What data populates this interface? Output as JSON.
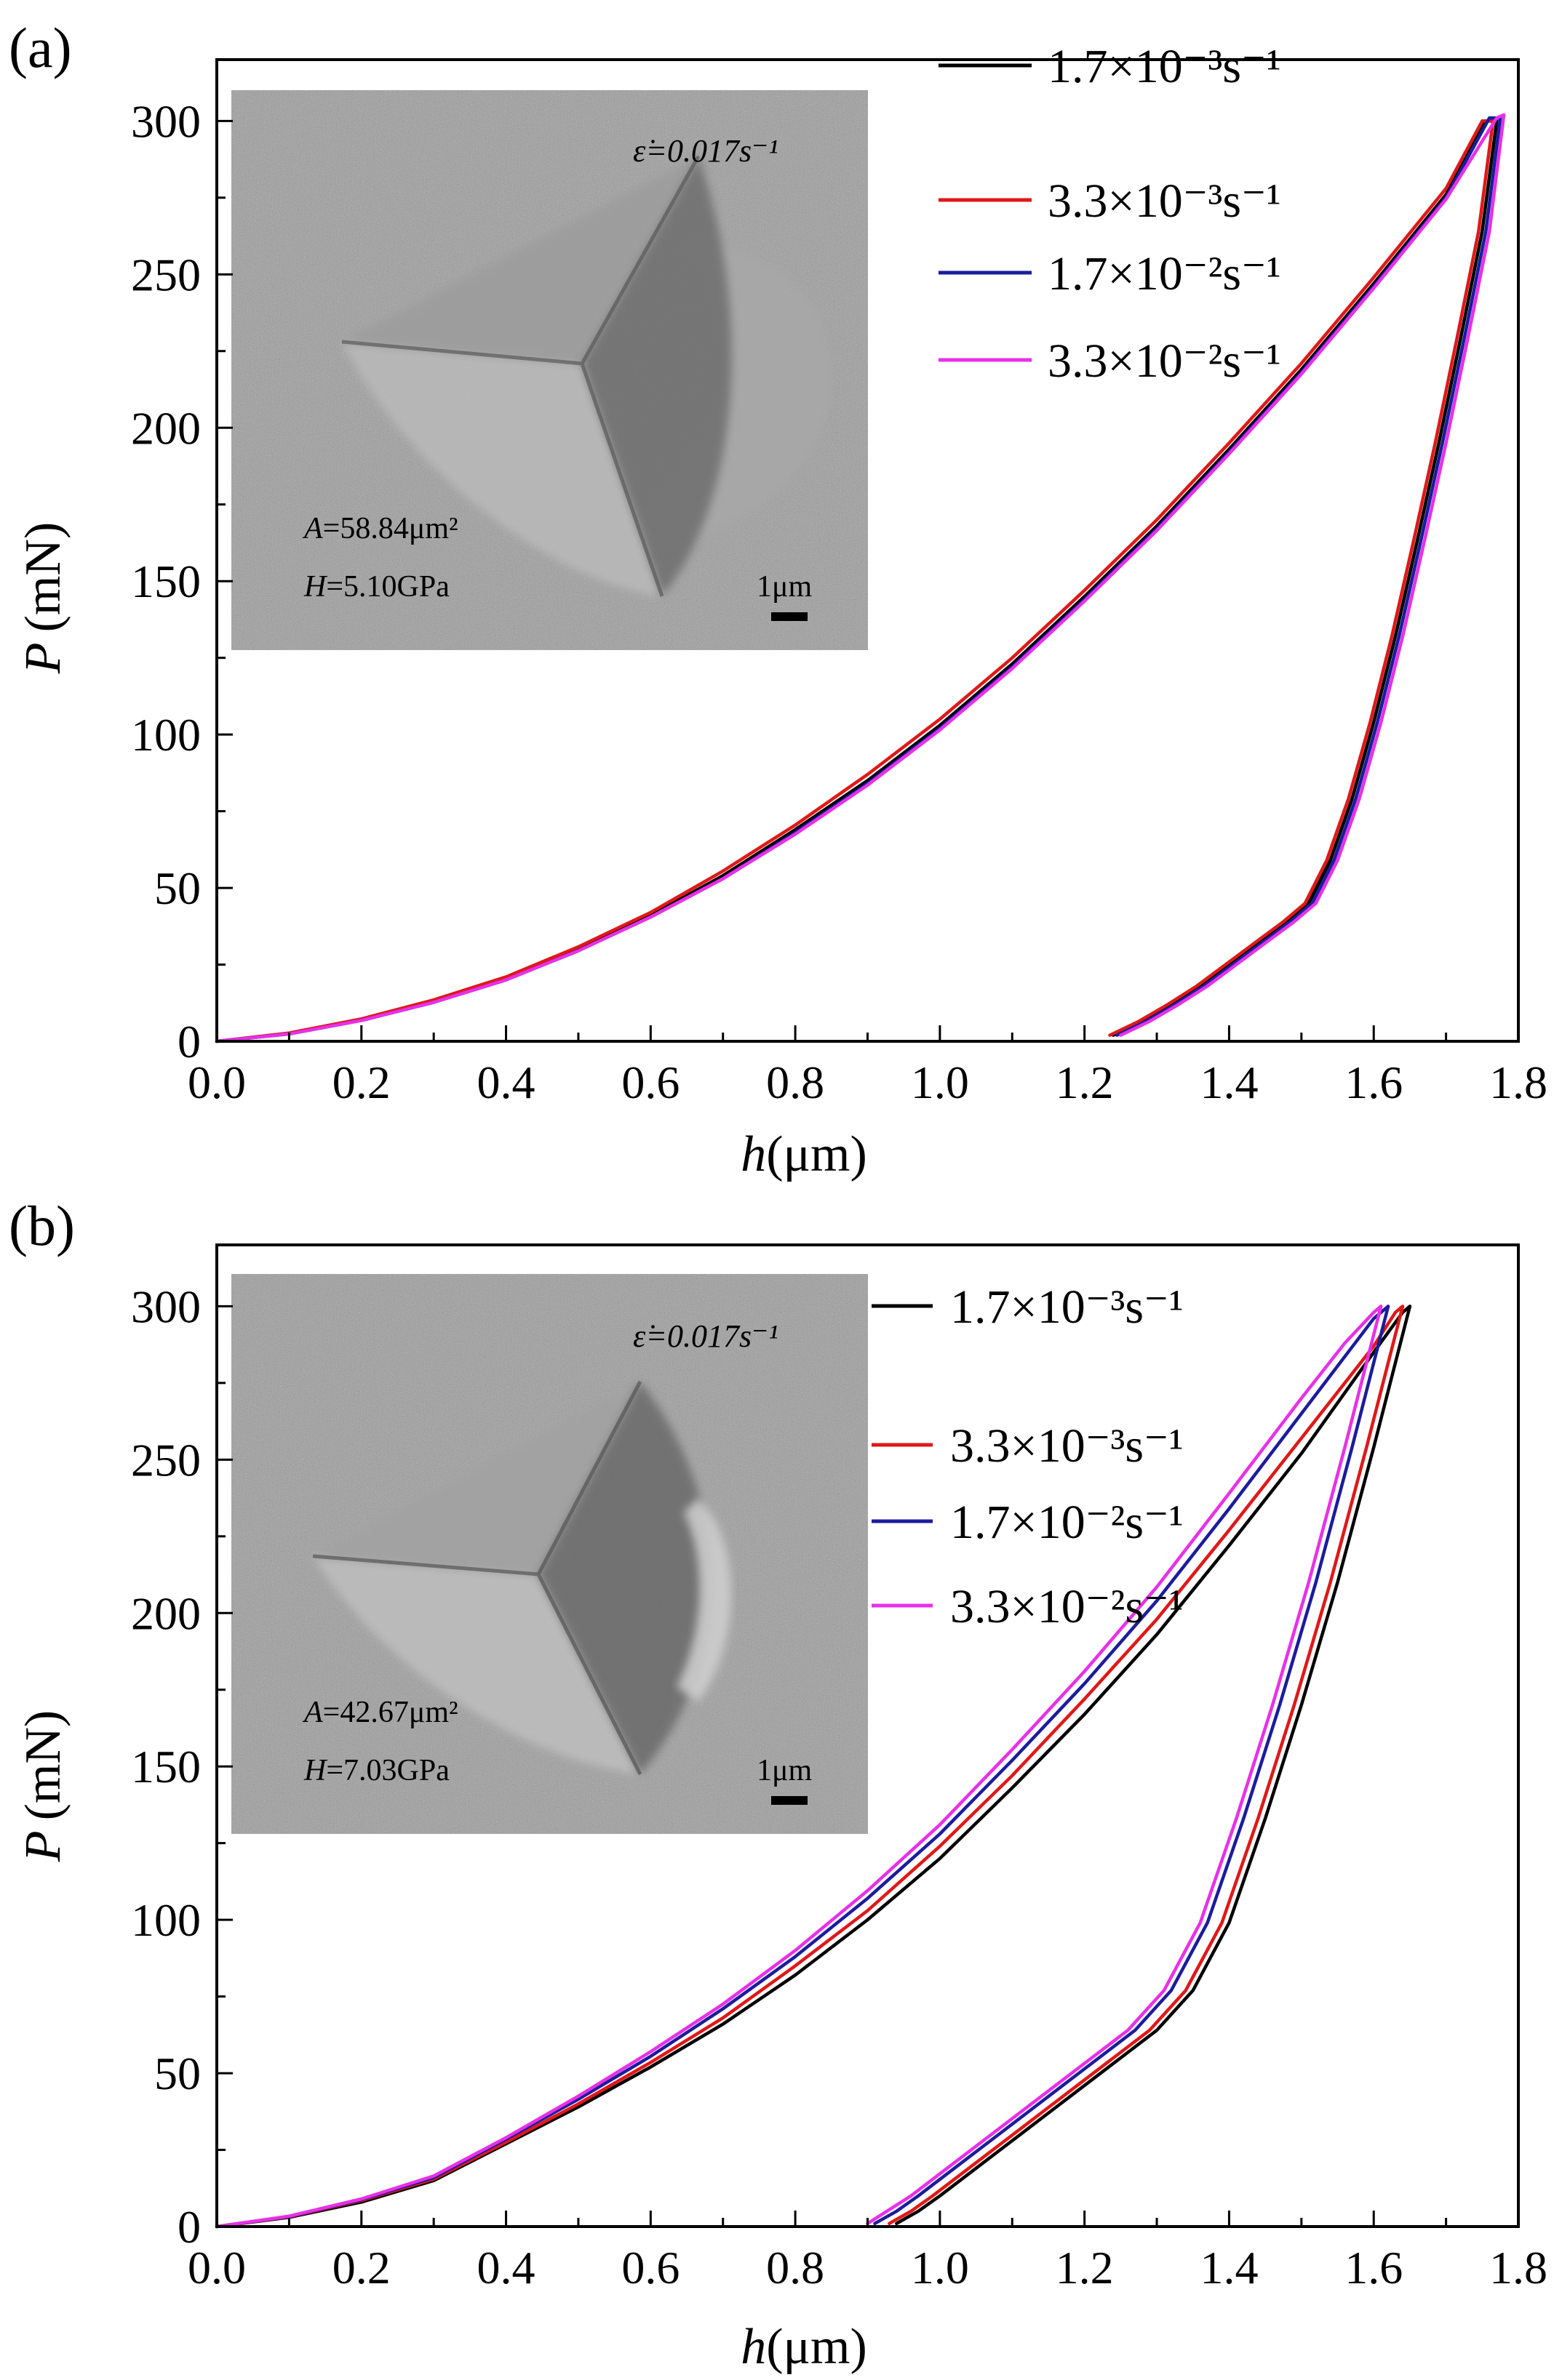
{
  "chart_data": [
    {
      "panel_label": "(a)",
      "type": "line",
      "xlabel_italic": "h",
      "xlabel_unit": "(μm)",
      "ylabel_italic": "P",
      "ylabel_unit": "(mN)",
      "xlim": [
        0.0,
        1.8
      ],
      "ylim": [
        0,
        320
      ],
      "xticks": [
        "0.0",
        "0.2",
        "0.4",
        "0.6",
        "0.8",
        "1.0",
        "1.2",
        "1.4",
        "1.6",
        "1.8"
      ],
      "yticks": [
        "0",
        "50",
        "100",
        "150",
        "200",
        "250",
        "300"
      ],
      "legend_position": "top-right",
      "inset": {
        "strain_rate_label": "ε̇=0.017s⁻¹",
        "area_label_italic": "A",
        "area_label_value": "=58.84μm²",
        "hardness_label_italic": "H",
        "hardness_label_value": "=5.10GPa",
        "scale_bar_label": "1μm"
      },
      "series": [
        {
          "name": "1.7×10⁻³s⁻¹",
          "color": "#000000",
          "x": [
            0,
            0.1,
            0.2,
            0.3,
            0.4,
            0.5,
            0.6,
            0.7,
            0.8,
            0.9,
            1.0,
            1.1,
            1.2,
            1.3,
            1.4,
            1.5,
            1.6,
            1.7,
            1.755,
            1.77,
            1.75,
            1.72,
            1.69,
            1.66,
            1.63,
            1.6,
            1.57,
            1.54,
            1.51,
            1.48,
            1.44,
            1.4,
            1.36,
            1.32,
            1.28,
            1.24
          ],
          "y": [
            0,
            2.5,
            7,
            13,
            20.5,
            30,
            41,
            54,
            69,
            85,
            103,
            123,
            145,
            168,
            193,
            219,
            247,
            276,
            300,
            300,
            264,
            229,
            195,
            163,
            132,
            104,
            79,
            59,
            45,
            39,
            32,
            25,
            18,
            12,
            6.5,
            2
          ]
        },
        {
          "name": "3.3×10⁻³s⁻¹",
          "color": "#e01818",
          "x": [
            0,
            0.1,
            0.2,
            0.3,
            0.4,
            0.5,
            0.6,
            0.7,
            0.8,
            0.9,
            1.0,
            1.1,
            1.2,
            1.3,
            1.4,
            1.5,
            1.6,
            1.7,
            1.75,
            1.765,
            1.745,
            1.715,
            1.685,
            1.655,
            1.625,
            1.595,
            1.565,
            1.535,
            1.505,
            1.475,
            1.435,
            1.395,
            1.355,
            1.315,
            1.275,
            1.235
          ],
          "y": [
            0,
            2.7,
            7.3,
            13.5,
            21,
            30.8,
            42,
            55.5,
            70.5,
            87,
            105,
            125,
            147,
            170,
            195,
            221,
            249,
            278,
            300,
            300,
            264,
            229,
            195,
            163,
            132,
            104,
            79,
            59,
            45,
            39,
            32,
            25,
            18,
            12,
            6.5,
            2
          ]
        },
        {
          "name": "1.7×10⁻²s⁻¹",
          "color": "#1c1c9c",
          "x": [
            0,
            0.1,
            0.2,
            0.3,
            0.4,
            0.5,
            0.6,
            0.7,
            0.8,
            0.9,
            1.0,
            1.1,
            1.2,
            1.3,
            1.4,
            1.5,
            1.6,
            1.7,
            1.76,
            1.775,
            1.755,
            1.725,
            1.695,
            1.665,
            1.635,
            1.605,
            1.575,
            1.545,
            1.515,
            1.485,
            1.445,
            1.405,
            1.365,
            1.325,
            1.285,
            1.245
          ],
          "y": [
            0,
            2.4,
            6.8,
            12.7,
            20,
            29.5,
            40.5,
            53,
            68,
            84,
            102,
            122,
            144,
            167,
            192,
            218,
            246,
            275,
            301,
            301,
            264,
            229,
            195,
            163,
            132,
            104,
            79,
            59,
            45,
            39,
            32,
            25,
            18,
            12,
            6.5,
            2
          ]
        },
        {
          "name": "3.3×10⁻²s⁻¹",
          "color": "#e830e8",
          "x": [
            0,
            0.1,
            0.2,
            0.3,
            0.4,
            0.5,
            0.6,
            0.7,
            0.8,
            0.9,
            1.0,
            1.1,
            1.2,
            1.3,
            1.4,
            1.5,
            1.6,
            1.7,
            1.77,
            1.78,
            1.76,
            1.73,
            1.7,
            1.67,
            1.64,
            1.61,
            1.58,
            1.55,
            1.52,
            1.49,
            1.45,
            1.41,
            1.37,
            1.33,
            1.29,
            1.25
          ],
          "y": [
            0,
            2.4,
            6.8,
            12.7,
            20,
            29.5,
            40.5,
            53,
            67.5,
            83.5,
            101.5,
            121.5,
            143.5,
            166.5,
            191.5,
            217.5,
            245.5,
            274.5,
            301,
            302,
            264,
            229,
            195,
            163,
            132,
            104,
            79,
            59,
            45,
            39,
            32,
            25,
            18,
            12,
            6.5,
            2
          ]
        }
      ]
    },
    {
      "panel_label": "(b)",
      "type": "line",
      "xlabel_italic": "h",
      "xlabel_unit": "(μm)",
      "ylabel_italic": "P",
      "ylabel_unit": "(mN)",
      "xlim": [
        0.0,
        1.8
      ],
      "ylim": [
        0,
        320
      ],
      "xticks": [
        "0.0",
        "0.2",
        "0.4",
        "0.6",
        "0.8",
        "1.0",
        "1.2",
        "1.4",
        "1.6",
        "1.8"
      ],
      "yticks": [
        "0",
        "50",
        "100",
        "150",
        "200",
        "250",
        "300"
      ],
      "legend_position": "top-right",
      "inset": {
        "strain_rate_label": "ε̇=0.017s⁻¹",
        "area_label_italic": "A",
        "area_label_value": "=42.67μm²",
        "hardness_label_italic": "H",
        "hardness_label_value": "=7.03GPa",
        "scale_bar_label": "1μm"
      },
      "series": [
        {
          "name": "1.7×10⁻³s⁻¹",
          "color": "#000000",
          "x": [
            0,
            0.1,
            0.2,
            0.3,
            0.4,
            0.5,
            0.6,
            0.7,
            0.8,
            0.9,
            1.0,
            1.1,
            1.2,
            1.3,
            1.4,
            1.5,
            1.6,
            1.64,
            1.65,
            1.6,
            1.55,
            1.5,
            1.45,
            1.4,
            1.35,
            1.3,
            1.25,
            1.2,
            1.15,
            1.1,
            1.05,
            1.0,
            0.97,
            0.94
          ],
          "y": [
            0,
            3,
            8,
            15,
            27,
            39,
            52,
            66,
            82,
            100,
            120,
            143,
            167,
            193,
            222,
            252,
            285,
            298,
            300,
            254,
            210,
            170,
            133,
            99,
            77,
            64,
            55,
            46,
            37,
            28,
            19,
            10,
            5,
            1
          ]
        },
        {
          "name": "3.3×10⁻³s⁻¹",
          "color": "#e01818",
          "x": [
            0,
            0.1,
            0.2,
            0.3,
            0.4,
            0.5,
            0.6,
            0.7,
            0.8,
            0.9,
            1.0,
            1.1,
            1.2,
            1.3,
            1.4,
            1.5,
            1.6,
            1.63,
            1.64,
            1.59,
            1.54,
            1.49,
            1.44,
            1.39,
            1.34,
            1.29,
            1.24,
            1.19,
            1.14,
            1.09,
            1.04,
            0.99,
            0.96,
            0.93
          ],
          "y": [
            0,
            3.2,
            8.5,
            15.5,
            27.5,
            40,
            53.5,
            68,
            85,
            103,
            124,
            147,
            172,
            198,
            227,
            257,
            287,
            298,
            300,
            254,
            210,
            170,
            133,
            99,
            77,
            64,
            55,
            46,
            37,
            28,
            19,
            10,
            5,
            1
          ]
        },
        {
          "name": "1.7×10⁻²s⁻¹",
          "color": "#1c1c9c",
          "x": [
            0,
            0.1,
            0.2,
            0.3,
            0.4,
            0.5,
            0.6,
            0.7,
            0.8,
            0.9,
            1.0,
            1.1,
            1.2,
            1.3,
            1.4,
            1.5,
            1.6,
            1.61,
            1.62,
            1.57,
            1.52,
            1.47,
            1.42,
            1.37,
            1.32,
            1.27,
            1.22,
            1.17,
            1.12,
            1.07,
            1.02,
            0.97,
            0.94,
            0.91
          ],
          "y": [
            0,
            3.3,
            8.8,
            16,
            28.5,
            41.5,
            55.5,
            71,
            88,
            107,
            128,
            152,
            177,
            204,
            234,
            265,
            296,
            298,
            300,
            254,
            210,
            170,
            133,
            99,
            77,
            64,
            55,
            46,
            37,
            28,
            19,
            10,
            5,
            1
          ]
        },
        {
          "name": "3.3×10⁻²s⁻¹",
          "color": "#e830e8",
          "x": [
            0,
            0.1,
            0.2,
            0.3,
            0.4,
            0.5,
            0.6,
            0.7,
            0.8,
            0.9,
            1.0,
            1.1,
            1.2,
            1.3,
            1.4,
            1.5,
            1.56,
            1.6,
            1.61,
            1.56,
            1.51,
            1.46,
            1.41,
            1.36,
            1.31,
            1.26,
            1.21,
            1.16,
            1.11,
            1.06,
            1.01,
            0.96,
            0.92,
            0.9
          ],
          "y": [
            0,
            3.4,
            9,
            16.5,
            29,
            42.5,
            57,
            72.5,
            90,
            109.5,
            131,
            155.5,
            181,
            208.5,
            239,
            270,
            288,
            298,
            300,
            254,
            210,
            170,
            133,
            99,
            77,
            64,
            55,
            46,
            37,
            28,
            19,
            10,
            4,
            1
          ]
        }
      ]
    }
  ]
}
